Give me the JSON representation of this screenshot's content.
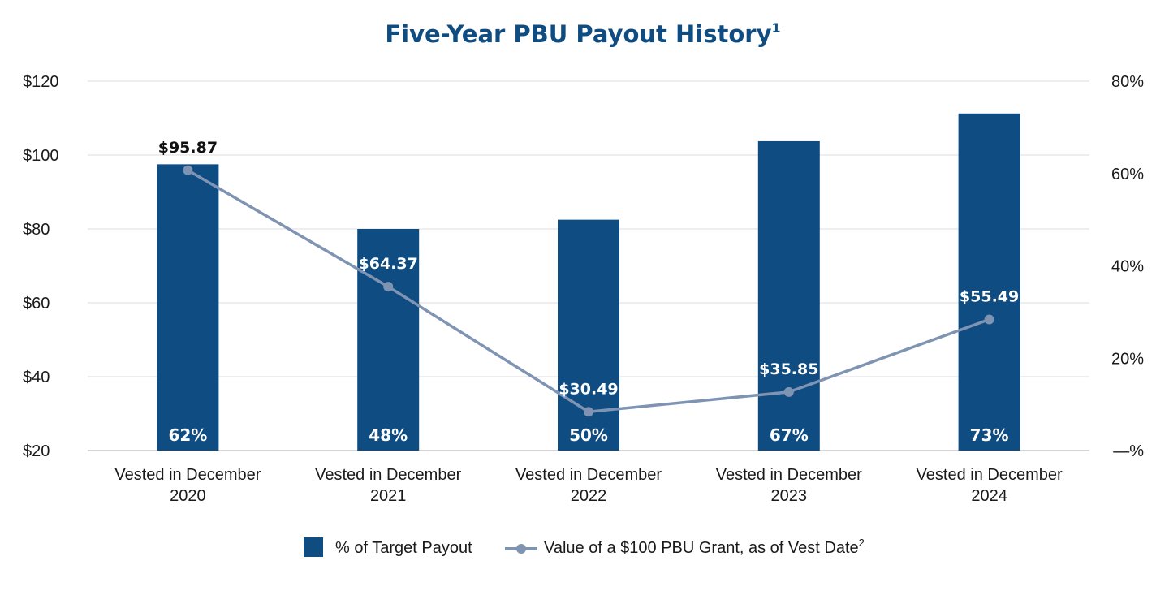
{
  "chart_data": {
    "type": "bar",
    "title": "Five-Year PBU Payout History",
    "title_superscript": "1",
    "categories": [
      [
        "Vested in December",
        "2020"
      ],
      [
        "Vested in December",
        "2021"
      ],
      [
        "Vested in December",
        "2022"
      ],
      [
        "Vested in December",
        "2023"
      ],
      [
        "Vested in December",
        "2024"
      ]
    ],
    "y_left": {
      "ticks": [
        "$20",
        "$40",
        "$60",
        "$80",
        "$100",
        "$120"
      ],
      "range": [
        20,
        120
      ]
    },
    "y_right": {
      "ticks": [
        "—%",
        "20%",
        "40%",
        "60%",
        "80%"
      ],
      "range": [
        0,
        80
      ]
    },
    "grid": true,
    "legend_position": "bottom",
    "series": [
      {
        "name": "% of Target Payout",
        "kind": "bar",
        "axis": "right",
        "values": [
          62,
          48,
          50,
          67,
          73
        ],
        "labels": [
          "62%",
          "48%",
          "50%",
          "67%",
          "73%"
        ],
        "color": "#0f4c81"
      },
      {
        "name": "Value of a $100 PBU Grant, as of Vest Date",
        "name_superscript": "2",
        "kind": "line",
        "axis": "left",
        "values": [
          95.87,
          64.37,
          30.49,
          35.85,
          55.49
        ],
        "labels": [
          "$95.87",
          "$64.37",
          "$30.49",
          "$35.85",
          "$55.49"
        ],
        "color": "#7f93b3"
      }
    ]
  }
}
